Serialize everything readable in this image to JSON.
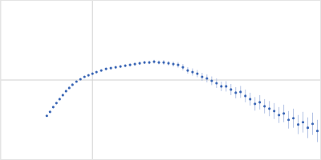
{
  "chart_data": {
    "type": "scatter",
    "color": "#3a66b5",
    "marker": "circle",
    "grid": true,
    "tick_labels": false,
    "xlim": [
      0,
      0.4
    ],
    "ylim": [
      0,
      2
    ],
    "xticks": [
      0.115
    ],
    "yticks": [
      1
    ],
    "x": [
      0.058,
      0.062,
      0.066,
      0.07,
      0.074,
      0.078,
      0.082,
      0.086,
      0.09,
      0.095,
      0.1,
      0.105,
      0.11,
      0.115,
      0.12,
      0.126,
      0.132,
      0.138,
      0.144,
      0.15,
      0.156,
      0.162,
      0.168,
      0.174,
      0.18,
      0.186,
      0.192,
      0.198,
      0.204,
      0.21,
      0.216,
      0.222,
      0.228,
      0.234,
      0.24,
      0.246,
      0.252,
      0.258,
      0.264,
      0.27,
      0.276,
      0.282,
      0.288,
      0.294,
      0.3,
      0.306,
      0.312,
      0.318,
      0.324,
      0.33,
      0.336,
      0.342,
      0.348,
      0.354,
      0.36,
      0.366,
      0.372,
      0.378,
      0.384,
      0.39,
      0.396
    ],
    "values": [
      0.55,
      0.6,
      0.66,
      0.71,
      0.76,
      0.81,
      0.86,
      0.9,
      0.94,
      0.98,
      1.01,
      1.04,
      1.06,
      1.08,
      1.1,
      1.12,
      1.14,
      1.15,
      1.16,
      1.17,
      1.18,
      1.19,
      1.2,
      1.21,
      1.22,
      1.22,
      1.23,
      1.22,
      1.22,
      1.21,
      1.2,
      1.19,
      1.16,
      1.12,
      1.1,
      1.08,
      1.04,
      1.02,
      0.99,
      0.96,
      0.92,
      0.92,
      0.88,
      0.84,
      0.85,
      0.8,
      0.76,
      0.7,
      0.72,
      0.67,
      0.64,
      0.61,
      0.56,
      0.58,
      0.5,
      0.52,
      0.44,
      0.47,
      0.4,
      0.45,
      0.36
    ],
    "errors": [
      0.005,
      0.005,
      0.005,
      0.005,
      0.005,
      0.006,
      0.006,
      0.006,
      0.007,
      0.007,
      0.008,
      0.008,
      0.009,
      0.01,
      0.01,
      0.01,
      0.012,
      0.012,
      0.014,
      0.015,
      0.015,
      0.016,
      0.018,
      0.02,
      0.02,
      0.022,
      0.024,
      0.025,
      0.03,
      0.03,
      0.032,
      0.035,
      0.04,
      0.04,
      0.045,
      0.045,
      0.05,
      0.05,
      0.055,
      0.06,
      0.06,
      0.065,
      0.07,
      0.07,
      0.075,
      0.08,
      0.08,
      0.085,
      0.09,
      0.09,
      0.095,
      0.1,
      0.1,
      0.11,
      0.11,
      0.12,
      0.12,
      0.13,
      0.13,
      0.14,
      0.14
    ]
  }
}
